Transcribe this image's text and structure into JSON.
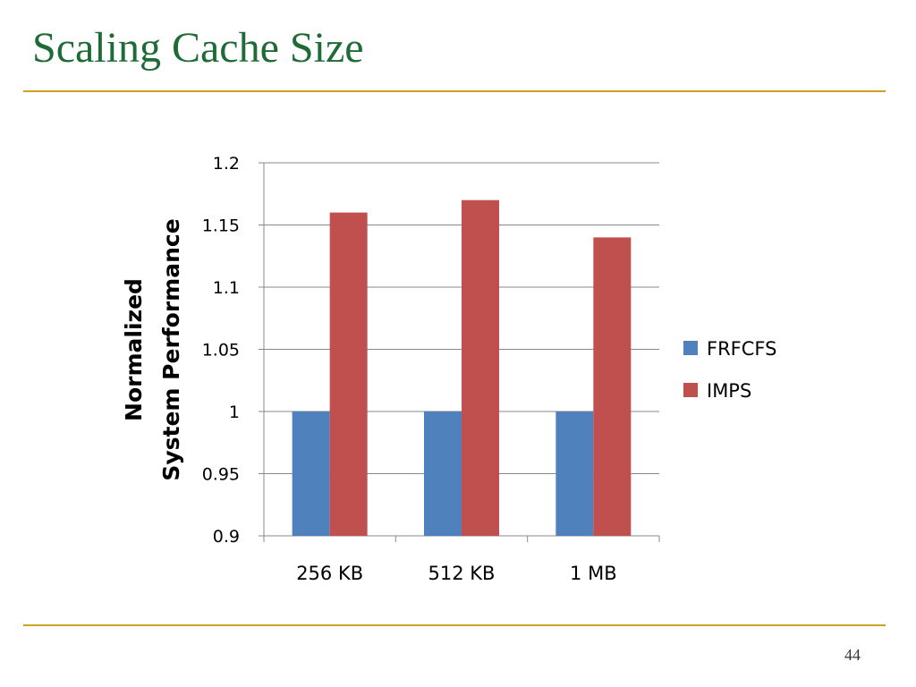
{
  "slide": {
    "title": "Scaling Cache Size",
    "page_number": "44"
  },
  "colors": {
    "title": "#1f6b38",
    "rule": "#c9a227",
    "frfcfs": "#4f81bd",
    "imps": "#c0504d",
    "gridline": "#888888"
  },
  "chart_data": {
    "type": "bar",
    "categories": [
      "256 KB",
      "512 KB",
      "1 MB"
    ],
    "series": [
      {
        "name": "FRFCFS",
        "values": [
          1.0,
          1.0,
          1.0
        ]
      },
      {
        "name": "IMPS",
        "values": [
          1.16,
          1.17,
          1.14
        ]
      }
    ],
    "ylabel": "Normalized\nSystem Performance",
    "ylim": [
      0.9,
      1.2
    ],
    "yticks": [
      0.9,
      0.95,
      1,
      1.05,
      1.1,
      1.15,
      1.2
    ],
    "ytick_labels": [
      "0.9",
      "0.95",
      "1",
      "1.05",
      "1.1",
      "1.15",
      "1.2"
    ],
    "grid": true,
    "legend": "right"
  }
}
